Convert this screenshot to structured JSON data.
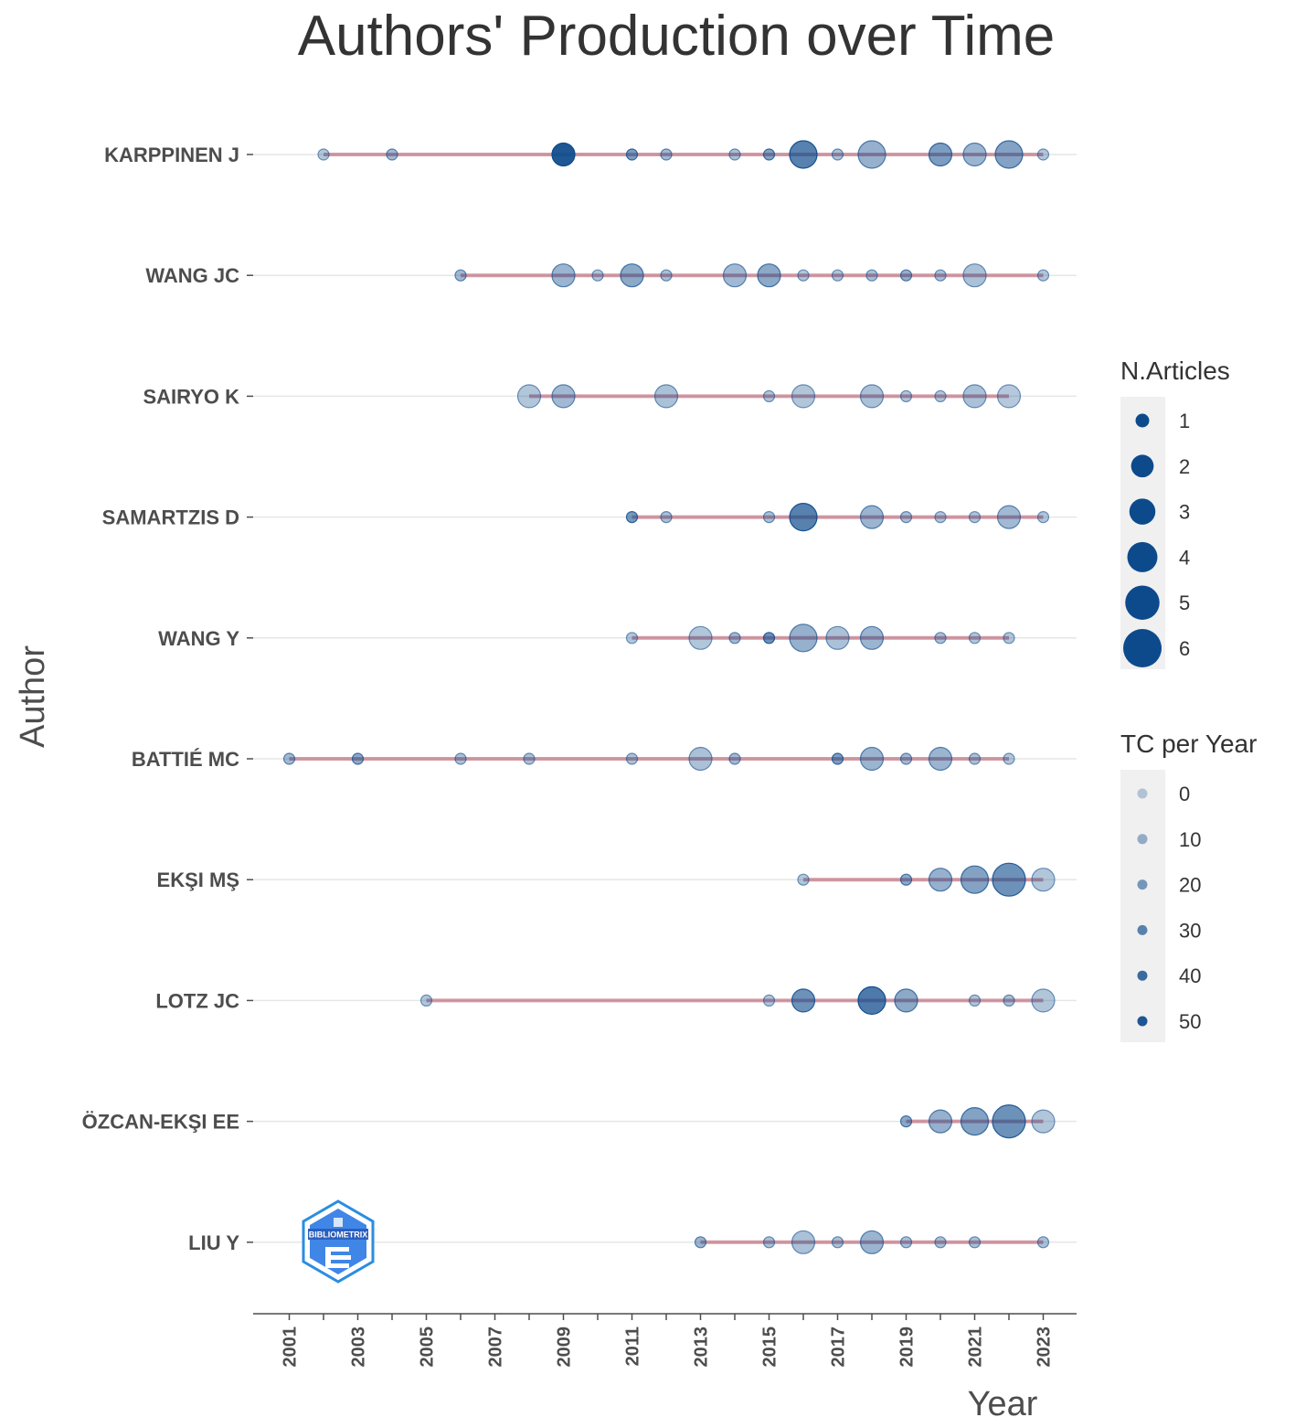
{
  "chart_data": {
    "type": "scatter",
    "title": "Authors' Production over Time",
    "xlabel": "Year",
    "ylabel": "Author",
    "x_ticks": [
      "2001",
      "2003",
      "2005",
      "2007",
      "2009",
      "2011",
      "2013",
      "2015",
      "2017",
      "2019",
      "2021",
      "2023"
    ],
    "xlim": [
      2000,
      2024
    ],
    "authors": [
      "KARPPINEN J",
      "WANG JC",
      "SAIRYO K",
      "SAMARTZIS D",
      "WANG Y",
      "BATTIÉ MC",
      "EKŞI MŞ",
      "LOTZ JC",
      "ÖZCAN-EKŞI EE",
      "LIU Y"
    ],
    "legend_size": {
      "title": "N.Articles",
      "values": [
        "1",
        "2",
        "3",
        "4",
        "5",
        "6"
      ]
    },
    "legend_color": {
      "title": "TC per Year",
      "values": [
        "0",
        "10",
        "20",
        "30",
        "40",
        "50"
      ]
    },
    "line_color": "#b5586a",
    "point_color": "#0d4a8c",
    "grid": true,
    "series": [
      {
        "author": "KARPPINEN J",
        "start": 2002,
        "end": 2023,
        "points": [
          {
            "year": 2002,
            "articles": 1,
            "tc": 3
          },
          {
            "year": 2004,
            "articles": 1,
            "tc": 8
          },
          {
            "year": 2009,
            "articles": 2,
            "tc": 50
          },
          {
            "year": 2011,
            "articles": 1,
            "tc": 20
          },
          {
            "year": 2012,
            "articles": 1,
            "tc": 8
          },
          {
            "year": 2014,
            "articles": 1,
            "tc": 5
          },
          {
            "year": 2015,
            "articles": 1,
            "tc": 18
          },
          {
            "year": 2016,
            "articles": 3,
            "tc": 32
          },
          {
            "year": 2017,
            "articles": 1,
            "tc": 5
          },
          {
            "year": 2018,
            "articles": 3,
            "tc": 12
          },
          {
            "year": 2020,
            "articles": 2,
            "tc": 20
          },
          {
            "year": 2021,
            "articles": 2,
            "tc": 10
          },
          {
            "year": 2022,
            "articles": 3,
            "tc": 18
          },
          {
            "year": 2023,
            "articles": 1,
            "tc": 3
          }
        ]
      },
      {
        "author": "WANG JC",
        "start": 2006,
        "end": 2023,
        "points": [
          {
            "year": 2006,
            "articles": 1,
            "tc": 8
          },
          {
            "year": 2009,
            "articles": 2,
            "tc": 10
          },
          {
            "year": 2010,
            "articles": 1,
            "tc": 3
          },
          {
            "year": 2011,
            "articles": 2,
            "tc": 15
          },
          {
            "year": 2012,
            "articles": 1,
            "tc": 5
          },
          {
            "year": 2014,
            "articles": 2,
            "tc": 8
          },
          {
            "year": 2015,
            "articles": 2,
            "tc": 15
          },
          {
            "year": 2016,
            "articles": 1,
            "tc": 3
          },
          {
            "year": 2017,
            "articles": 1,
            "tc": 3
          },
          {
            "year": 2018,
            "articles": 1,
            "tc": 5
          },
          {
            "year": 2019,
            "articles": 1,
            "tc": 12
          },
          {
            "year": 2020,
            "articles": 1,
            "tc": 5
          },
          {
            "year": 2021,
            "articles": 2,
            "tc": 5
          },
          {
            "year": 2023,
            "articles": 1,
            "tc": 3
          }
        ]
      },
      {
        "author": "SAIRYO K",
        "start": 2008,
        "end": 2022,
        "points": [
          {
            "year": 2008,
            "articles": 2,
            "tc": 3
          },
          {
            "year": 2009,
            "articles": 2,
            "tc": 8
          },
          {
            "year": 2012,
            "articles": 2,
            "tc": 5
          },
          {
            "year": 2015,
            "articles": 1,
            "tc": 3
          },
          {
            "year": 2016,
            "articles": 2,
            "tc": 3
          },
          {
            "year": 2018,
            "articles": 2,
            "tc": 5
          },
          {
            "year": 2019,
            "articles": 1,
            "tc": 3
          },
          {
            "year": 2020,
            "articles": 1,
            "tc": 3
          },
          {
            "year": 2021,
            "articles": 2,
            "tc": 5
          },
          {
            "year": 2022,
            "articles": 2,
            "tc": 2
          }
        ]
      },
      {
        "author": "SAMARTZIS D",
        "start": 2011,
        "end": 2023,
        "points": [
          {
            "year": 2011,
            "articles": 1,
            "tc": 22
          },
          {
            "year": 2012,
            "articles": 1,
            "tc": 5
          },
          {
            "year": 2015,
            "articles": 1,
            "tc": 5
          },
          {
            "year": 2016,
            "articles": 3,
            "tc": 32
          },
          {
            "year": 2018,
            "articles": 2,
            "tc": 10
          },
          {
            "year": 2019,
            "articles": 1,
            "tc": 5
          },
          {
            "year": 2020,
            "articles": 1,
            "tc": 3
          },
          {
            "year": 2021,
            "articles": 1,
            "tc": 3
          },
          {
            "year": 2022,
            "articles": 2,
            "tc": 8
          },
          {
            "year": 2023,
            "articles": 1,
            "tc": 3
          }
        ]
      },
      {
        "author": "WANG Y",
        "start": 2011,
        "end": 2022,
        "points": [
          {
            "year": 2011,
            "articles": 1,
            "tc": 3
          },
          {
            "year": 2013,
            "articles": 2,
            "tc": 3
          },
          {
            "year": 2014,
            "articles": 1,
            "tc": 8
          },
          {
            "year": 2015,
            "articles": 1,
            "tc": 25
          },
          {
            "year": 2016,
            "articles": 3,
            "tc": 12
          },
          {
            "year": 2017,
            "articles": 2,
            "tc": 5
          },
          {
            "year": 2018,
            "articles": 2,
            "tc": 10
          },
          {
            "year": 2020,
            "articles": 1,
            "tc": 5
          },
          {
            "year": 2021,
            "articles": 1,
            "tc": 3
          },
          {
            "year": 2022,
            "articles": 1,
            "tc": 3
          }
        ]
      },
      {
        "author": "BATTIÉ MC",
        "start": 2001,
        "end": 2022,
        "points": [
          {
            "year": 2001,
            "articles": 1,
            "tc": 8
          },
          {
            "year": 2003,
            "articles": 1,
            "tc": 15
          },
          {
            "year": 2006,
            "articles": 1,
            "tc": 5
          },
          {
            "year": 2008,
            "articles": 1,
            "tc": 5
          },
          {
            "year": 2011,
            "articles": 1,
            "tc": 5
          },
          {
            "year": 2013,
            "articles": 2,
            "tc": 5
          },
          {
            "year": 2014,
            "articles": 1,
            "tc": 8
          },
          {
            "year": 2017,
            "articles": 1,
            "tc": 20
          },
          {
            "year": 2018,
            "articles": 2,
            "tc": 10
          },
          {
            "year": 2019,
            "articles": 1,
            "tc": 8
          },
          {
            "year": 2020,
            "articles": 2,
            "tc": 10
          },
          {
            "year": 2021,
            "articles": 1,
            "tc": 5
          },
          {
            "year": 2022,
            "articles": 1,
            "tc": 3
          }
        ]
      },
      {
        "author": "EKŞI MŞ",
        "start": 2016,
        "end": 2023,
        "points": [
          {
            "year": 2016,
            "articles": 1,
            "tc": 3
          },
          {
            "year": 2019,
            "articles": 1,
            "tc": 15
          },
          {
            "year": 2020,
            "articles": 2,
            "tc": 12
          },
          {
            "year": 2021,
            "articles": 3,
            "tc": 18
          },
          {
            "year": 2022,
            "articles": 4,
            "tc": 25
          },
          {
            "year": 2023,
            "articles": 2,
            "tc": 3
          }
        ]
      },
      {
        "author": "LOTZ JC",
        "start": 2005,
        "end": 2023,
        "points": [
          {
            "year": 2005,
            "articles": 1,
            "tc": 3
          },
          {
            "year": 2015,
            "articles": 1,
            "tc": 3
          },
          {
            "year": 2016,
            "articles": 2,
            "tc": 25
          },
          {
            "year": 2018,
            "articles": 3,
            "tc": 35
          },
          {
            "year": 2019,
            "articles": 2,
            "tc": 15
          },
          {
            "year": 2021,
            "articles": 1,
            "tc": 3
          },
          {
            "year": 2022,
            "articles": 1,
            "tc": 5
          },
          {
            "year": 2023,
            "articles": 2,
            "tc": 3
          }
        ]
      },
      {
        "author": "ÖZCAN-EKŞI EE",
        "start": 2019,
        "end": 2023,
        "points": [
          {
            "year": 2019,
            "articles": 1,
            "tc": 15
          },
          {
            "year": 2020,
            "articles": 2,
            "tc": 12
          },
          {
            "year": 2021,
            "articles": 3,
            "tc": 18
          },
          {
            "year": 2022,
            "articles": 4,
            "tc": 25
          },
          {
            "year": 2023,
            "articles": 2,
            "tc": 3
          }
        ]
      },
      {
        "author": "LIU Y",
        "start": 2013,
        "end": 2023,
        "points": [
          {
            "year": 2013,
            "articles": 1,
            "tc": 10
          },
          {
            "year": 2015,
            "articles": 1,
            "tc": 5
          },
          {
            "year": 2016,
            "articles": 2,
            "tc": 5
          },
          {
            "year": 2017,
            "articles": 1,
            "tc": 5
          },
          {
            "year": 2018,
            "articles": 2,
            "tc": 10
          },
          {
            "year": 2019,
            "articles": 1,
            "tc": 5
          },
          {
            "year": 2020,
            "articles": 1,
            "tc": 5
          },
          {
            "year": 2021,
            "articles": 1,
            "tc": 5
          },
          {
            "year": 2023,
            "articles": 1,
            "tc": 5
          }
        ]
      }
    ]
  },
  "logo": {
    "text": "BIBLIOMETRIX"
  }
}
